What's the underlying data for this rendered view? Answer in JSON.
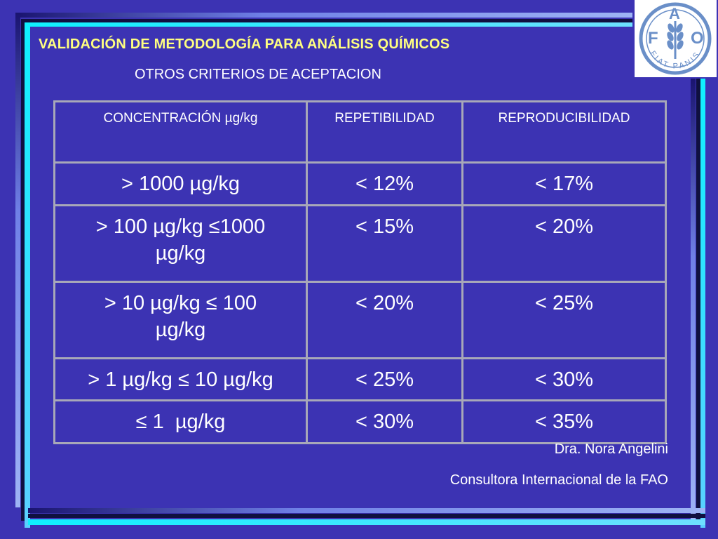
{
  "slide": {
    "title": "VALIDACIÓN DE METODOLOGÍA PARA ANÁLISIS QUÍMICOS",
    "subtitle": "OTROS CRITERIOS DE ACEPTACION"
  },
  "logo": {
    "letters": [
      "F",
      "A",
      "O"
    ],
    "motto": "FIAT PANIS"
  },
  "table": {
    "headers": [
      "CONCENTRACIÓN µg/kg",
      "REPETIBILIDAD",
      "REPRODUCIBILIDAD"
    ],
    "rows": [
      [
        "> 1000 µg/kg",
        "< 12%",
        "< 17%"
      ],
      [
        "> 100 µg/kg ≤1000 µg/kg",
        "< 15%",
        "< 20%"
      ],
      [
        "> 10 µg/kg ≤ 100 µg/kg",
        "< 20%",
        "< 25%"
      ],
      [
        "> 1 µg/kg ≤ 10 µg/kg",
        "< 25%",
        "< 30%"
      ],
      [
        "≤ 1  µg/kg",
        "< 30%",
        "< 35%"
      ]
    ]
  },
  "footer": {
    "author": "Dra. Nora Angelini",
    "role": "Consultora Internacional de la FAO"
  },
  "colors": {
    "background": "#3c33b3",
    "title": "#ffff80",
    "text": "#ffffff",
    "grid": "#a8a8b8",
    "logo_blue": "#6a8fc8"
  }
}
